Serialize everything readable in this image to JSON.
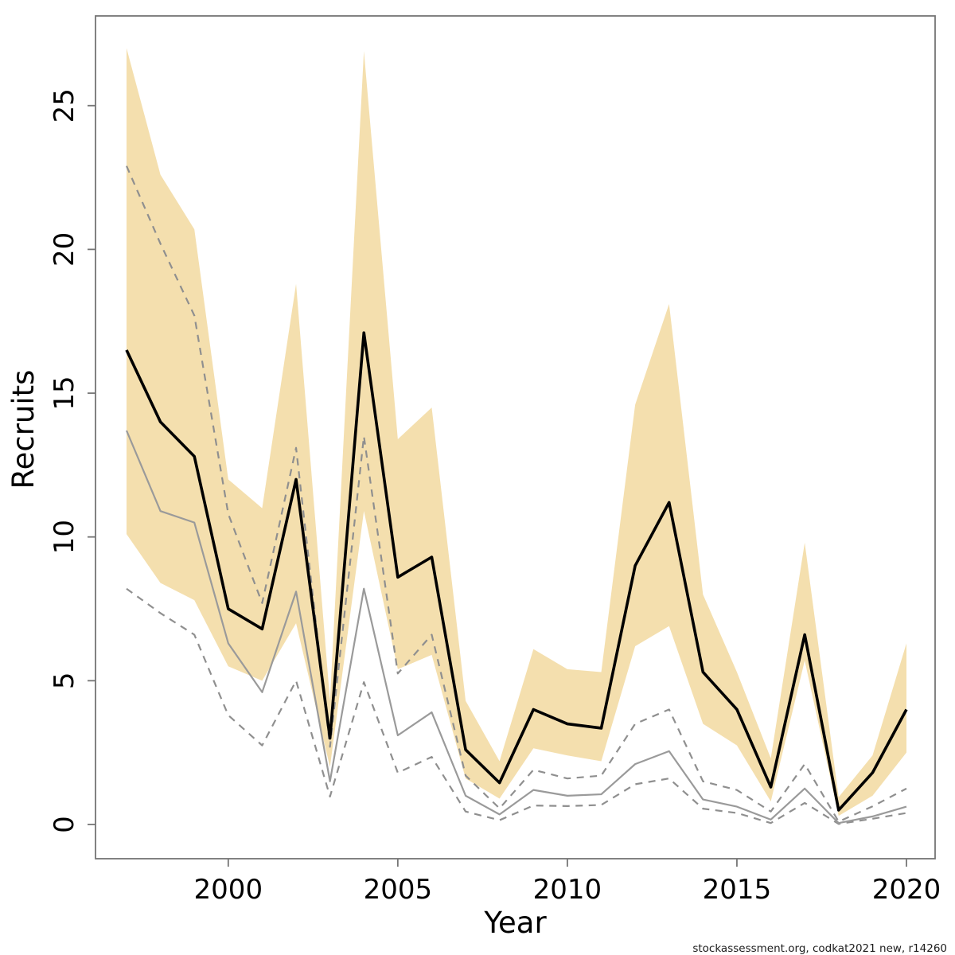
{
  "watermark": {
    "text": "stockassessment.org, codkat2021 new, r14260"
  },
  "colors": {
    "band": "#f4dfae",
    "estimate_line": "#000000",
    "comparison_line": "#9a9a9a",
    "comparison_dashed": "#8f8f8f",
    "axis_box": "#757575",
    "tick_text": "#000000"
  },
  "chart_data": {
    "type": "line",
    "title": "",
    "xlabel": "Year",
    "ylabel": "Recruits",
    "legend_position": "none",
    "grid": false,
    "xlim": [
      1996.085,
      2020.845
    ],
    "ylim": [
      -1.19,
      28.12
    ],
    "xticks": [
      2000,
      2005,
      2010,
      2015,
      2020
    ],
    "yticks": [
      0,
      5,
      10,
      15,
      20,
      25
    ],
    "x": [
      1997,
      1998,
      1999,
      2000,
      2001,
      2002,
      2003,
      2004,
      2005,
      2006,
      2007,
      2008,
      2009,
      2010,
      2011,
      2012,
      2013,
      2014,
      2015,
      2016,
      2017,
      2018,
      2019,
      2020
    ],
    "band": {
      "name": "confidence-interval-band",
      "color": "#f4dfae",
      "upper": [
        27.0,
        22.6,
        20.7,
        12.0,
        11.0,
        18.8,
        4.3,
        26.9,
        13.4,
        14.5,
        4.3,
        2.2,
        6.1,
        5.4,
        5.3,
        14.6,
        18.1,
        8.0,
        5.3,
        2.3,
        9.8,
        0.95,
        2.4,
        6.3
      ],
      "lower": [
        10.1,
        8.4,
        7.8,
        5.5,
        5.0,
        7.0,
        2.0,
        10.9,
        5.4,
        5.9,
        1.6,
        0.9,
        2.65,
        2.4,
        2.2,
        6.2,
        6.9,
        3.5,
        2.75,
        0.8,
        5.7,
        0.3,
        1.0,
        2.5
      ]
    },
    "series": [
      {
        "name": "comparison-run-upper",
        "style": "dashed",
        "color": "#8f8f8f",
        "values": [
          22.9,
          20.2,
          17.7,
          10.8,
          7.7,
          13.1,
          2.7,
          13.5,
          5.25,
          6.6,
          1.7,
          0.56,
          1.9,
          1.6,
          1.7,
          3.5,
          4.0,
          1.5,
          1.2,
          0.45,
          2.1,
          0.1,
          0.63,
          1.25
        ]
      },
      {
        "name": "comparison-run-lower",
        "style": "dashed",
        "color": "#8f8f8f",
        "values": [
          8.2,
          7.35,
          6.6,
          3.8,
          2.75,
          5.0,
          0.97,
          4.95,
          1.8,
          2.35,
          0.45,
          0.15,
          0.66,
          0.64,
          0.68,
          1.4,
          1.6,
          0.55,
          0.4,
          0.05,
          0.75,
          0.02,
          0.2,
          0.4
        ]
      },
      {
        "name": "comparison-run-median",
        "style": "solid",
        "color": "#9a9a9a",
        "values": [
          13.7,
          10.9,
          10.5,
          6.3,
          4.6,
          8.1,
          1.5,
          8.2,
          3.1,
          3.9,
          1.0,
          0.35,
          1.2,
          1.0,
          1.05,
          2.1,
          2.55,
          0.87,
          0.62,
          0.17,
          1.25,
          0.05,
          0.28,
          0.62
        ]
      },
      {
        "name": "estimate-median",
        "style": "solid-bold",
        "color": "#000000",
        "values": [
          16.5,
          14.0,
          12.8,
          7.5,
          6.8,
          12.0,
          3.0,
          17.1,
          8.6,
          9.3,
          2.6,
          1.45,
          4.0,
          3.5,
          3.35,
          9.0,
          11.2,
          5.3,
          4.0,
          1.3,
          6.6,
          0.5,
          1.8,
          4.0
        ]
      }
    ]
  }
}
